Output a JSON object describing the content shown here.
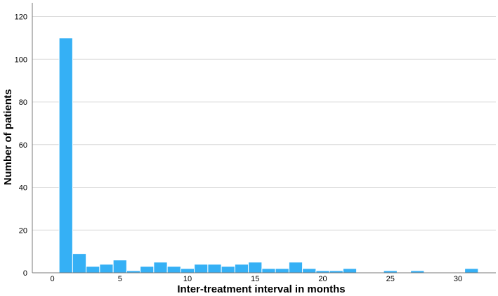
{
  "chart_data": {
    "type": "bar",
    "title": "",
    "xlabel": "Inter-treatment interval in months",
    "ylabel": "Number of patients",
    "xlim": [
      -1.5,
      32.5
    ],
    "ylim": [
      0,
      127
    ],
    "x_ticks": [
      0,
      5,
      10,
      15,
      20,
      25,
      30
    ],
    "y_ticks": [
      0,
      20,
      40,
      60,
      80,
      100,
      120
    ],
    "grid": "horizontal",
    "bin_width": 1,
    "bar_color": "#35b0f5",
    "bar_edge_color": "#ffffff",
    "series": [
      {
        "x": [
          1,
          2,
          3,
          4,
          5,
          6,
          7,
          8,
          9,
          10,
          11,
          12,
          13,
          14,
          15,
          16,
          17,
          18,
          19,
          20,
          21,
          22,
          25,
          27,
          31
        ],
        "values": [
          110,
          9,
          3,
          4,
          6,
          1,
          3,
          5,
          3,
          2,
          4,
          4,
          3,
          4,
          5,
          2,
          2,
          5,
          2,
          1,
          1,
          2,
          1,
          1,
          2
        ]
      }
    ]
  }
}
